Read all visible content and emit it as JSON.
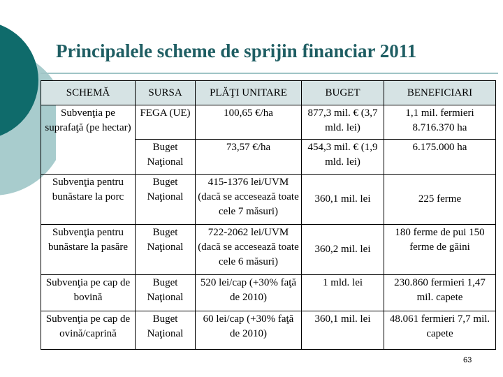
{
  "slide": {
    "title": "Principalele scheme de sprijin financiar 2011",
    "page_number": "63",
    "colors": {
      "teal": "#0f6b6b",
      "light_teal": "#a8cccd",
      "header_fill": "#d6e3e4",
      "title": "#1f5e63"
    }
  },
  "table": {
    "headers": [
      "SCHEMĂ",
      "SURSA",
      "PLĂŢI UNITARE",
      "BUGET",
      "BENEFICIARI"
    ],
    "rows": [
      {
        "schema": "Subvenţia pe suprafaţă (pe hectar)",
        "sursa": "FEGA (UE)",
        "plati": "100,65 €/ha",
        "buget": "877,3 mil. € (3,7 mld. lei)",
        "beneficiari": "1,1 mil. fermieri 8.716.370 ha"
      },
      {
        "sursa": "Buget Naţional",
        "plati": "73,57 €/ha",
        "buget": "454,3 mil. € (1,9 mld. lei)",
        "beneficiari": "6.175.000 ha"
      },
      {
        "schema": "Subvenţia pentru bunăstare la porc",
        "sursa": "Buget Naţional",
        "plati": "415-1376 lei/UVM (dacă se accesează toate cele 7 măsuri)",
        "buget": "360,1 mil. lei",
        "beneficiari": "225 ferme"
      },
      {
        "schema": "Subvenţia pentru bunăstare la pasăre",
        "sursa": "Buget Naţional",
        "plati": "722-2062 lei/UVM (dacă se accesează toate cele 6 măsuri)",
        "buget": "360,2 mil. lei",
        "beneficiari": "180 ferme de pui 150 ferme de găini"
      },
      {
        "schema": "Subvenţia pe cap de bovină",
        "sursa": "Buget Naţional",
        "plati": "520 lei/cap (+30% faţă de 2010)",
        "buget": "1 mld. lei",
        "beneficiari": "230.860 fermieri 1,47 mil. capete"
      },
      {
        "schema": "Subvenţia pe cap de ovină/caprină",
        "sursa": "Buget Naţional",
        "plati": "60 lei/cap (+30% faţă de 2010)",
        "buget": "360,1 mil. lei",
        "beneficiari": "48.061 fermieri 7,7 mil. capete"
      }
    ]
  }
}
